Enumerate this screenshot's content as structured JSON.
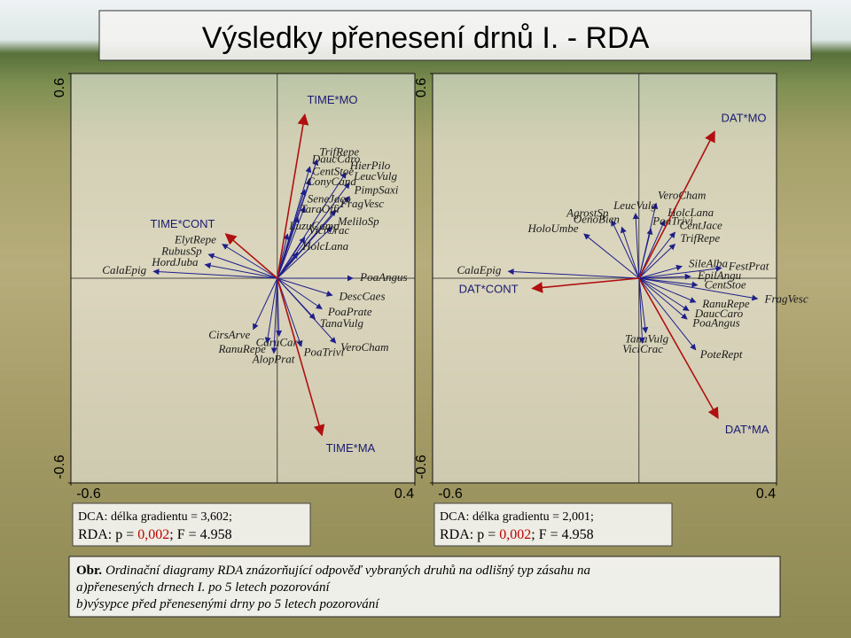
{
  "title": "Výsledky přenesení drnů I. - RDA",
  "caption": {
    "lead": "Obr.",
    "line1": "Ordinační diagramy RDA znázorňující odpověď vybraných druhů na odlišný typ zásahu na",
    "line2": "a)přenesených drnech I. po 5 letech pozorování",
    "line3": "b)výsypce před přenesenými drny po 5 letech pozorování"
  },
  "chart_data": [
    {
      "type": "biplot",
      "xlim": [
        -0.6,
        0.4
      ],
      "ylim": [
        -0.6,
        0.6
      ],
      "xticks": [
        -0.6,
        0.4
      ],
      "yticks": [
        -0.6,
        0.6
      ],
      "species_color": "#1f1f8a",
      "factor_color": "#b01010",
      "note": {
        "dca": "DCA: délka gradientu = 3,602;",
        "rda": "RDA: p = ",
        "p": "0,002",
        "f": "; F = 4.958"
      },
      "factors": [
        {
          "name": "TIME*MO",
          "x": 0.08,
          "y": 0.48
        },
        {
          "name": "TIME*CONT",
          "x": -0.15,
          "y": 0.13
        },
        {
          "name": "TIME*MA",
          "x": 0.13,
          "y": -0.46
        }
      ],
      "species": [
        {
          "name": "TrifRepe",
          "x": 0.116,
          "y": 0.348
        },
        {
          "name": "DaucCaro",
          "x": 0.095,
          "y": 0.327
        },
        {
          "name": "HierPilo",
          "x": 0.2,
          "y": 0.31
        },
        {
          "name": "CentStoe",
          "x": 0.095,
          "y": 0.29
        },
        {
          "name": "LeucVulg",
          "x": 0.21,
          "y": 0.28
        },
        {
          "name": "ConyCana",
          "x": 0.08,
          "y": 0.26
        },
        {
          "name": "PimpSaxi",
          "x": 0.21,
          "y": 0.24
        },
        {
          "name": "SeneJaco",
          "x": 0.08,
          "y": 0.21
        },
        {
          "name": "FragVesc",
          "x": 0.17,
          "y": 0.2
        },
        {
          "name": "TaraOffi",
          "x": 0.06,
          "y": 0.18
        },
        {
          "name": "MeliloSp",
          "x": 0.16,
          "y": 0.15
        },
        {
          "name": "LuzuCamp",
          "x": 0.03,
          "y": 0.13
        },
        {
          "name": "ViciCrac",
          "x": 0.08,
          "y": 0.12
        },
        {
          "name": "HolcLana",
          "x": 0.06,
          "y": 0.075
        },
        {
          "name": "ElytRepe",
          "x": -0.16,
          "y": 0.1
        },
        {
          "name": "RubusSp",
          "x": -0.2,
          "y": 0.07
        },
        {
          "name": "HordJuba",
          "x": -0.21,
          "y": 0.04
        },
        {
          "name": "CalaEpig",
          "x": -0.36,
          "y": 0.02
        },
        {
          "name": "PoaAngus",
          "x": 0.22,
          "y": 0.0
        },
        {
          "name": "DescCaes",
          "x": 0.16,
          "y": -0.05
        },
        {
          "name": "PoaPrate",
          "x": 0.13,
          "y": -0.09
        },
        {
          "name": "TanaVulg",
          "x": 0.11,
          "y": -0.12
        },
        {
          "name": "CirsArve",
          "x": -0.07,
          "y": -0.15
        },
        {
          "name": "CaruCarv",
          "x": 0.005,
          "y": -0.17
        },
        {
          "name": "RanuRepe",
          "x": -0.03,
          "y": -0.19
        },
        {
          "name": "PoaTrivi",
          "x": 0.07,
          "y": -0.2
        },
        {
          "name": "VeroCham",
          "x": 0.17,
          "y": -0.19
        },
        {
          "name": "AlopPrat",
          "x": -0.01,
          "y": -0.22
        }
      ]
    },
    {
      "type": "biplot",
      "xlim": [
        -0.6,
        0.4
      ],
      "ylim": [
        -0.6,
        0.6
      ],
      "xticks": [
        -0.6,
        0.4
      ],
      "yticks": [
        -0.6,
        0.6
      ],
      "species_color": "#1f1f8a",
      "factor_color": "#b01010",
      "note": {
        "dca": "DCA: délka gradientu = 2,001;",
        "rda": "RDA: p = ",
        "p": "0,002",
        "f": "; F = 4.958"
      },
      "factors": [
        {
          "name": "DAT*MO",
          "x": 0.22,
          "y": 0.43
        },
        {
          "name": "DAT*CONT",
          "x": -0.31,
          "y": -0.03
        },
        {
          "name": "DAT*MA",
          "x": 0.23,
          "y": -0.41
        }
      ],
      "species": [
        {
          "name": "VeroCham",
          "x": 0.05,
          "y": 0.22
        },
        {
          "name": "LeucVulg",
          "x": -0.01,
          "y": 0.19
        },
        {
          "name": "AgrostSp",
          "x": -0.08,
          "y": 0.17
        },
        {
          "name": "HolcLana",
          "x": 0.075,
          "y": 0.17
        },
        {
          "name": "OenoBien",
          "x": -0.05,
          "y": 0.15
        },
        {
          "name": "PoaTrivi",
          "x": 0.035,
          "y": 0.145
        },
        {
          "name": "CentJace",
          "x": 0.105,
          "y": 0.135
        },
        {
          "name": "HoloUmbe",
          "x": -0.16,
          "y": 0.13
        },
        {
          "name": "TrifRepe",
          "x": 0.105,
          "y": 0.1
        },
        {
          "name": "SileAlba",
          "x": 0.125,
          "y": 0.035
        },
        {
          "name": "FestPrat",
          "x": 0.24,
          "y": 0.03
        },
        {
          "name": "EpilAngu",
          "x": 0.15,
          "y": 0.005
        },
        {
          "name": "CentStoe",
          "x": 0.17,
          "y": -0.02
        },
        {
          "name": "FragVesc",
          "x": 0.345,
          "y": -0.06
        },
        {
          "name": "RanuRepe",
          "x": 0.165,
          "y": -0.07
        },
        {
          "name": "DaucCaro",
          "x": 0.145,
          "y": -0.095
        },
        {
          "name": "PoaAngus",
          "x": 0.14,
          "y": -0.12
        },
        {
          "name": "TanaVulg",
          "x": 0.02,
          "y": -0.16
        },
        {
          "name": "ViciCrac",
          "x": 0.01,
          "y": -0.19
        },
        {
          "name": "PoteRept",
          "x": 0.165,
          "y": -0.21
        },
        {
          "name": "CalaEpig",
          "x": -0.38,
          "y": 0.02
        }
      ]
    }
  ]
}
